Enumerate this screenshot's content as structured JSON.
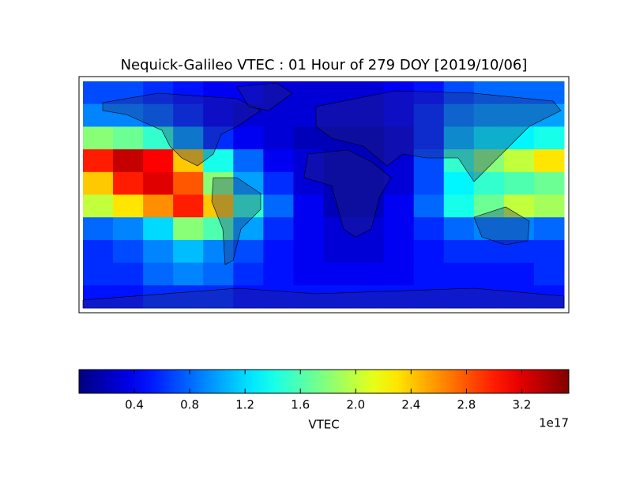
{
  "chart_data": {
    "type": "heatmap",
    "title": "Nequick-Galileo VTEC : 01 Hour of 279 DOY [2019/10/06]",
    "values": [
      [
        0.7,
        0.7,
        0.6,
        0.5,
        0.4,
        0.4,
        0.3,
        0.3,
        0.3,
        0.3,
        0.4,
        0.5,
        0.7,
        0.8,
        0.8,
        0.8
      ],
      [
        0.9,
        0.9,
        0.8,
        0.6,
        0.4,
        0.3,
        0.3,
        0.3,
        0.3,
        0.3,
        0.4,
        0.6,
        0.9,
        1.0,
        1.0,
        1.0
      ],
      [
        1.8,
        1.7,
        1.5,
        1.0,
        0.6,
        0.4,
        0.3,
        0.2,
        0.2,
        0.2,
        0.3,
        0.6,
        1.1,
        1.3,
        1.3,
        1.4
      ],
      [
        3.0,
        3.3,
        3.1,
        2.4,
        1.4,
        0.8,
        0.4,
        0.3,
        0.2,
        0.2,
        0.3,
        0.7,
        1.5,
        1.8,
        2.0,
        2.3
      ],
      [
        2.4,
        3.0,
        3.2,
        2.8,
        1.8,
        1.0,
        0.6,
        0.3,
        0.2,
        0.2,
        0.3,
        0.7,
        1.3,
        1.5,
        1.6,
        1.7
      ],
      [
        2.0,
        2.3,
        2.6,
        3.0,
        2.4,
        1.5,
        0.8,
        0.4,
        0.2,
        0.2,
        0.4,
        0.8,
        1.4,
        1.7,
        2.0,
        1.9
      ],
      [
        0.8,
        0.9,
        1.2,
        1.8,
        1.6,
        1.0,
        0.6,
        0.4,
        0.3,
        0.3,
        0.4,
        0.6,
        0.8,
        0.9,
        0.9,
        0.8
      ],
      [
        0.6,
        0.7,
        0.9,
        1.1,
        0.9,
        0.7,
        0.5,
        0.4,
        0.3,
        0.3,
        0.4,
        0.5,
        0.6,
        0.6,
        0.6,
        0.6
      ],
      [
        0.6,
        0.6,
        0.8,
        0.9,
        0.8,
        0.6,
        0.5,
        0.4,
        0.4,
        0.4,
        0.4,
        0.5,
        0.5,
        0.5,
        0.5,
        0.6
      ],
      [
        0.5,
        0.5,
        0.6,
        0.6,
        0.6,
        0.5,
        0.5,
        0.5,
        0.5,
        0.5,
        0.5,
        0.5,
        0.5,
        0.5,
        0.5,
        0.5
      ]
    ],
    "colorbar": {
      "label": "VTEC",
      "offset_label": "1e17",
      "lim": [
        0.0,
        3.54
      ],
      "ticks": [
        0.4,
        0.8,
        1.2,
        1.6,
        {
          "value": 2,
          "label": "2.0"
        },
        2.4,
        2.8,
        3.2
      ],
      "colormap": "jet"
    }
  }
}
